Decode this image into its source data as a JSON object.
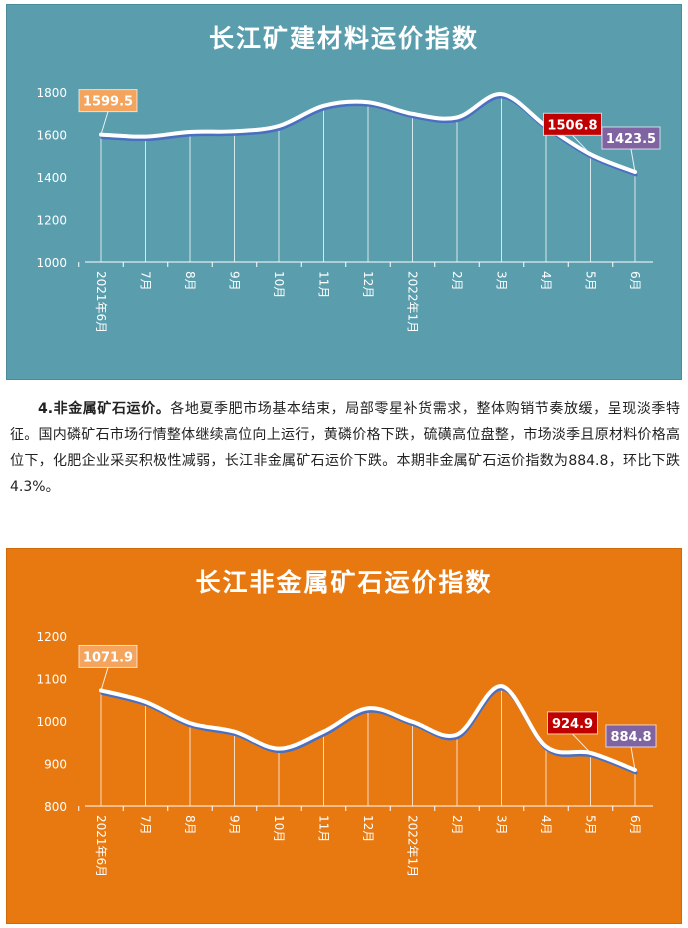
{
  "paragraph": {
    "heading": "4.非金属矿石运价。",
    "body": "各地夏季肥市场基本结束，局部零星补货需求，整体购销节奏放缓，呈现淡季特征。国内磷矿石市场行情整体继续高位向上运行，黄磷价格下跌，硫磺高位盘整，市场淡季且原材料价格高位下，化肥企业采买积极性减弱，长江非金属矿石运价下跌。本期非金属矿石运价指数为884.8，环比下跌4.3%。"
  },
  "colors": {
    "panel1_bg": "#5a9eae",
    "panel2_bg": "#e87910",
    "line_main": "#ffffff",
    "line_shadow": "#4a6fc0",
    "label_first": "#f4a45c",
    "label_prev": "#c00000",
    "label_last": "#8064a2"
  },
  "chart_data": [
    {
      "type": "line",
      "title": "长江矿建材料运价指数",
      "categories": [
        "2021年6月",
        "7月",
        "8月",
        "9月",
        "10月",
        "11月",
        "12月",
        "2022年1月",
        "2月",
        "3月",
        "4月",
        "5月",
        "6月"
      ],
      "values": [
        1599.5,
        1590,
        1612,
        1615,
        1640,
        1735,
        1752,
        1697,
        1680,
        1790,
        1640,
        1506.8,
        1423.5
      ],
      "ylim": [
        1000,
        1800
      ],
      "yticks": [
        1000,
        1200,
        1400,
        1600,
        1800
      ],
      "grid": false,
      "labels": [
        {
          "index": 0,
          "text": "1599.5",
          "color": "#f4a45c"
        },
        {
          "index": 11,
          "text": "1506.8",
          "color": "#c00000"
        },
        {
          "index": 12,
          "text": "1423.5",
          "color": "#8064a2"
        }
      ]
    },
    {
      "type": "line",
      "title": "长江非金属矿石运价指数",
      "categories": [
        "2021年6月",
        "7月",
        "8月",
        "9月",
        "10月",
        "11月",
        "12月",
        "2022年1月",
        "2月",
        "3月",
        "4月",
        "5月",
        "6月"
      ],
      "values": [
        1071.9,
        1045,
        995,
        975,
        935,
        975,
        1030,
        998,
        968,
        1082,
        940,
        924.9,
        884.8
      ],
      "ylim": [
        800,
        1200
      ],
      "yticks": [
        800,
        900,
        1000,
        1100,
        1200
      ],
      "grid": false,
      "labels": [
        {
          "index": 0,
          "text": "1071.9",
          "color": "#f4a45c"
        },
        {
          "index": 11,
          "text": "924.9",
          "color": "#c00000"
        },
        {
          "index": 12,
          "text": "884.8",
          "color": "#8064a2"
        }
      ]
    }
  ]
}
